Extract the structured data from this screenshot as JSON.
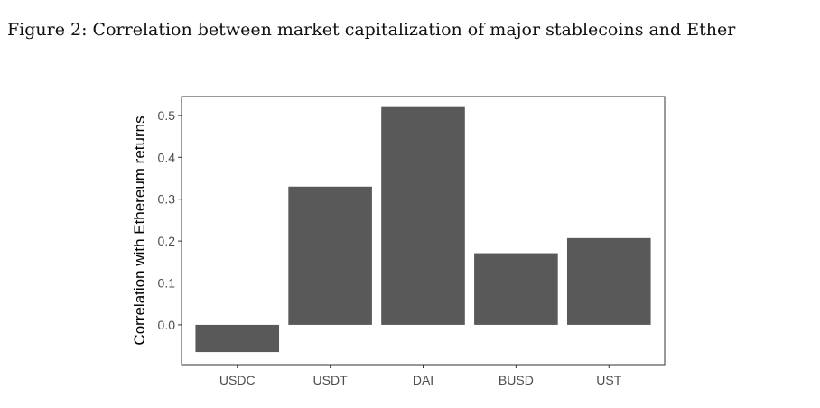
{
  "figure_title": "Figure 2: Correlation between market capitalization of major stablecoins and Ether",
  "chart_data": {
    "type": "bar",
    "categories": [
      "USDC",
      "USDT",
      "DAI",
      "BUSD",
      "UST"
    ],
    "values": [
      -0.065,
      0.33,
      0.522,
      0.171,
      0.207
    ],
    "xlabel": "",
    "ylabel": "Correlation with Ethereum returns",
    "ylim": [
      -0.095,
      0.545
    ],
    "yticks": [
      0.0,
      0.1,
      0.2,
      0.3,
      0.4,
      0.5
    ],
    "ytick_labels": [
      "0.0",
      "0.1",
      "0.2",
      "0.3",
      "0.4",
      "0.5"
    ],
    "bar_color": "#595959",
    "grid": false,
    "legend": "none"
  }
}
